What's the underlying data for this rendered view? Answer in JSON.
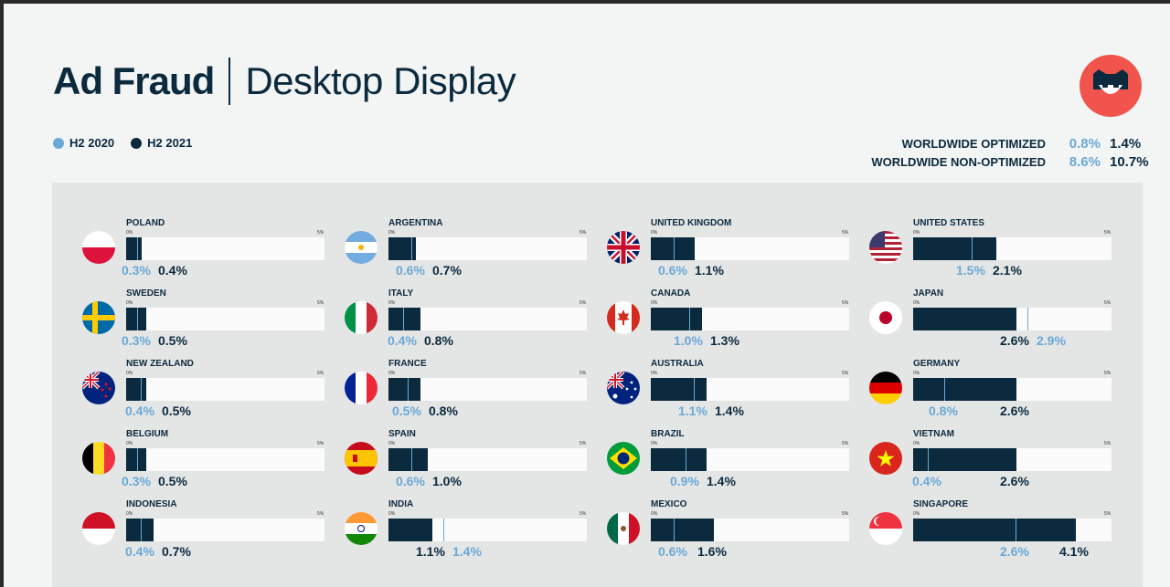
{
  "title": {
    "main": "Ad Fraud",
    "sub": "Desktop Display"
  },
  "legend": [
    {
      "label": "H2 2020",
      "color": "#6aa9d6"
    },
    {
      "label": "H2 2021",
      "color": "#0b2a3e"
    }
  ],
  "worldwide": [
    {
      "label": "WORLDWIDE OPTIMIZED",
      "h2_2020": "0.8%",
      "h2_2021": "1.4%"
    },
    {
      "label": "WORLDWIDE NON-OPTIMIZED",
      "h2_2020": "8.6%",
      "h2_2021": "10.7%"
    }
  ],
  "colors": {
    "h2_2020": "#6aa9d6",
    "h2_2021": "#0b2a3e",
    "logo": "#f0544c"
  },
  "chart_data": {
    "type": "bar",
    "unit": "%",
    "xlim": [
      0,
      5
    ],
    "tick_min": "0%",
    "tick_max": "5%",
    "series_names": [
      "H2 2020",
      "H2 2021"
    ],
    "countries": [
      {
        "name": "POLAND",
        "flag": "poland-flag-icon",
        "h2_2020": 0.3,
        "h2_2021": 0.4
      },
      {
        "name": "ARGENTINA",
        "flag": "argentina-flag-icon",
        "h2_2020": 0.6,
        "h2_2021": 0.7
      },
      {
        "name": "UNITED KINGDOM",
        "flag": "uk-flag-icon",
        "h2_2020": 0.6,
        "h2_2021": 1.1
      },
      {
        "name": "UNITED STATES",
        "flag": "us-flag-icon",
        "h2_2020": 1.5,
        "h2_2021": 2.1
      },
      {
        "name": "SWEDEN",
        "flag": "sweden-flag-icon",
        "h2_2020": 0.3,
        "h2_2021": 0.5
      },
      {
        "name": "ITALY",
        "flag": "italy-flag-icon",
        "h2_2020": 0.4,
        "h2_2021": 0.8
      },
      {
        "name": "CANADA",
        "flag": "canada-flag-icon",
        "h2_2020": 1.0,
        "h2_2021": 1.3
      },
      {
        "name": "JAPAN",
        "flag": "japan-flag-icon",
        "h2_2020": 2.9,
        "h2_2021": 2.6
      },
      {
        "name": "NEW ZEALAND",
        "flag": "new-zealand-flag-icon",
        "h2_2020": 0.4,
        "h2_2021": 0.5
      },
      {
        "name": "FRANCE",
        "flag": "france-flag-icon",
        "h2_2020": 0.5,
        "h2_2021": 0.8
      },
      {
        "name": "AUSTRALIA",
        "flag": "australia-flag-icon",
        "h2_2020": 1.1,
        "h2_2021": 1.4
      },
      {
        "name": "GERMANY",
        "flag": "germany-flag-icon",
        "h2_2020": 0.8,
        "h2_2021": 2.6
      },
      {
        "name": "BELGIUM",
        "flag": "belgium-flag-icon",
        "h2_2020": 0.3,
        "h2_2021": 0.5
      },
      {
        "name": "SPAIN",
        "flag": "spain-flag-icon",
        "h2_2020": 0.6,
        "h2_2021": 1.0
      },
      {
        "name": "BRAZIL",
        "flag": "brazil-flag-icon",
        "h2_2020": 0.9,
        "h2_2021": 1.4
      },
      {
        "name": "VIETNAM",
        "flag": "vietnam-flag-icon",
        "h2_2020": 0.4,
        "h2_2021": 2.6
      },
      {
        "name": "INDONESIA",
        "flag": "indonesia-flag-icon",
        "h2_2020": 0.4,
        "h2_2021": 0.7
      },
      {
        "name": "INDIA",
        "flag": "india-flag-icon",
        "h2_2020": 1.4,
        "h2_2021": 1.1
      },
      {
        "name": "MEXICO",
        "flag": "mexico-flag-icon",
        "h2_2020": 0.6,
        "h2_2021": 1.6
      },
      {
        "name": "SINGAPORE",
        "flag": "singapore-flag-icon",
        "h2_2020": 2.6,
        "h2_2021": 4.1
      }
    ]
  }
}
